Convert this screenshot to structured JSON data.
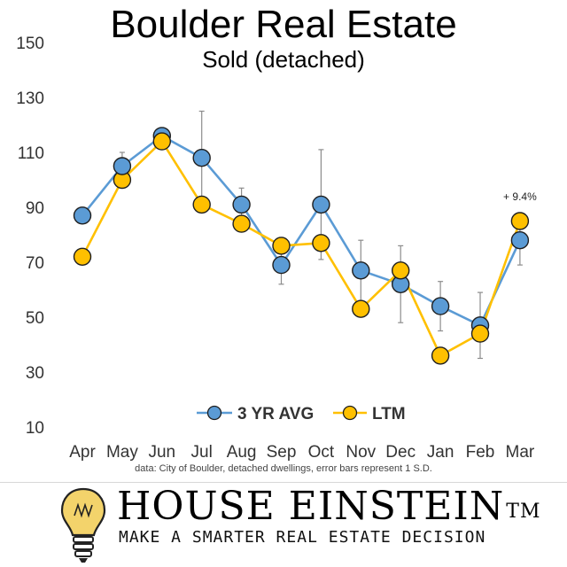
{
  "header": {
    "title": "Boulder Real Estate",
    "subtitle": "Sold (detached)"
  },
  "caption": "data: City of Boulder, detached dwellings, error bars represent 1 S.D.",
  "brand": {
    "name": "HOUSE EINSTEIN",
    "trademark": "TM",
    "tagline": "MAKE A SMARTER REAL ESTATE DECISION",
    "logo_icon": "lightbulb-icon"
  },
  "chart_data": {
    "type": "line",
    "title": "Boulder Real Estate",
    "subtitle": "Sold (detached)",
    "categories": [
      "Apr",
      "May",
      "Jun",
      "Jul",
      "Aug",
      "Sep",
      "Oct",
      "Nov",
      "Dec",
      "Jan",
      "Feb",
      "Mar"
    ],
    "ylim": [
      10,
      150
    ],
    "yticks": [
      10,
      30,
      50,
      70,
      90,
      110,
      130,
      150
    ],
    "grid": false,
    "legend_position": "bottom-center",
    "series": [
      {
        "name": "3 YR AVG",
        "color": "#5b9bd5",
        "values": [
          87,
          105,
          116,
          108,
          91,
          69,
          91,
          67,
          62,
          54,
          47,
          78
        ],
        "error_low": [
          null,
          101,
          114,
          91,
          86,
          62,
          71,
          56,
          48,
          45,
          35,
          69
        ],
        "error_high": [
          null,
          110,
          118,
          125,
          97,
          76,
          111,
          78,
          76,
          63,
          59,
          82
        ]
      },
      {
        "name": "LTM",
        "color": "#ffc000",
        "values": [
          72,
          100,
          114,
          91,
          84,
          76,
          77,
          53,
          67,
          36,
          44,
          85
        ]
      }
    ],
    "annotations": [
      {
        "category": "Mar",
        "text": "+ 9.4%"
      }
    ]
  }
}
